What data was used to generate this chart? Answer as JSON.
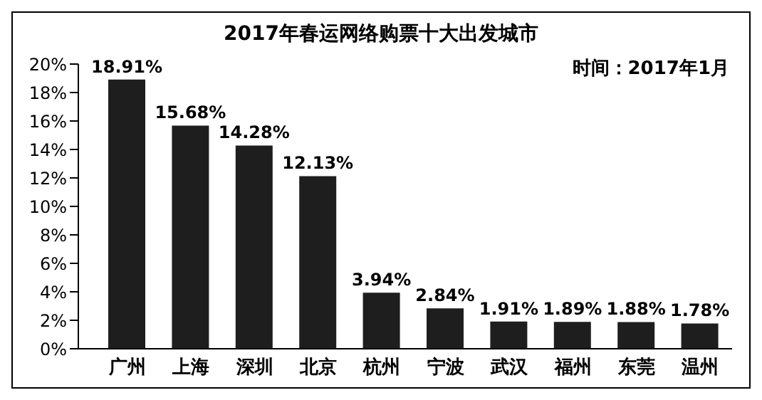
{
  "chart_data": {
    "type": "bar",
    "title": "2017年春运网络购票十大出发城市",
    "annotations": [
      "时间：2017年1月"
    ],
    "categories": [
      "广州",
      "上海",
      "深圳",
      "北京",
      "杭州",
      "宁波",
      "武汉",
      "福州",
      "东莞",
      "温州"
    ],
    "values": [
      18.91,
      15.68,
      14.28,
      12.13,
      3.94,
      2.84,
      1.91,
      1.89,
      1.88,
      1.78
    ],
    "value_labels": [
      "18.91%",
      "15.68%",
      "14.28%",
      "12.13%",
      "3.94%",
      "2.84%",
      "1.91%",
      "1.89%",
      "1.88%",
      "1.78%"
    ],
    "color": "#1e1e1e",
    "ylim": [
      0,
      20
    ],
    "yticks": [
      {
        "value": 0,
        "label": "0%"
      },
      {
        "value": 2,
        "label": "2%"
      },
      {
        "value": 4,
        "label": "4%"
      },
      {
        "value": 6,
        "label": "6%"
      },
      {
        "value": 8,
        "label": "8%"
      },
      {
        "value": 10,
        "label": "10%"
      },
      {
        "value": 12,
        "label": "12%"
      },
      {
        "value": 14,
        "label": "14%"
      },
      {
        "value": 16,
        "label": "16%"
      },
      {
        "value": 18,
        "label": "18%"
      },
      {
        "value": 20,
        "label": "20%"
      }
    ],
    "grid": false,
    "legend": false
  }
}
